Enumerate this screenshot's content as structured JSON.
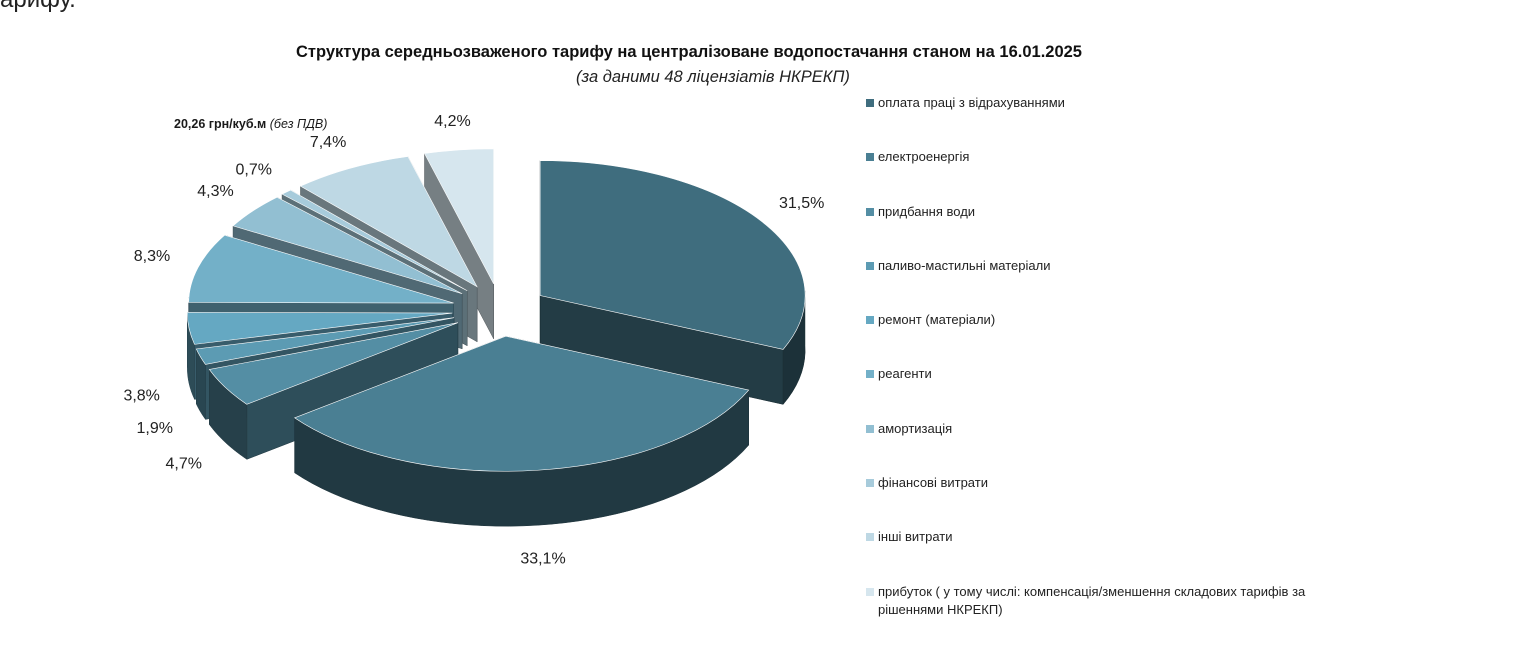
{
  "page": {
    "fragment_text": "арифу."
  },
  "chart_data": {
    "type": "pie",
    "title": "Структура  середньозваженого тарифу на централізоване водопостачання станом на 16.01.2025",
    "subtitle": "(за даними 48 ліцензіатів НКРЕКП)",
    "price_value": "20,26 грн/куб.м",
    "price_note": "(без ПДВ)",
    "legend_position": "right",
    "slices": [
      {
        "name": "оплата праці з відрахуваннями",
        "value": 31.5,
        "label": "31,5%",
        "color": "#3f6d7e"
      },
      {
        "name": "електроенергія",
        "value": 33.1,
        "label": "33,1%",
        "color": "#4a7f93"
      },
      {
        "name": "придбання води",
        "value": 4.7,
        "label": "4,7%",
        "color": "#548ea4"
      },
      {
        "name": "паливо-мастильні матеріали",
        "value": 1.9,
        "label": "1,9%",
        "color": "#5c9bb3"
      },
      {
        "name": "ремонт (матеріали)",
        "value": 3.8,
        "label": "3,8%",
        "color": "#65a8c2"
      },
      {
        "name": "реагенти",
        "value": 8.3,
        "label": "8,3%",
        "color": "#73b0c8"
      },
      {
        "name": "амортизація",
        "value": 4.3,
        "label": "4,3%",
        "color": "#92bfd2"
      },
      {
        "name": "фінансові витрати",
        "value": 0.7,
        "label": "0,7%",
        "color": "#a7cbdb"
      },
      {
        "name": "інші витрати",
        "value": 7.4,
        "label": "7,4%",
        "color": "#bed8e4"
      },
      {
        "name": "прибуток ( у тому числі: компенсація/зменшення складових тарифів за рішеннями НКРЕКП)",
        "value": 4.2,
        "label": "4,2%",
        "color": "#d6e6ee"
      }
    ]
  }
}
